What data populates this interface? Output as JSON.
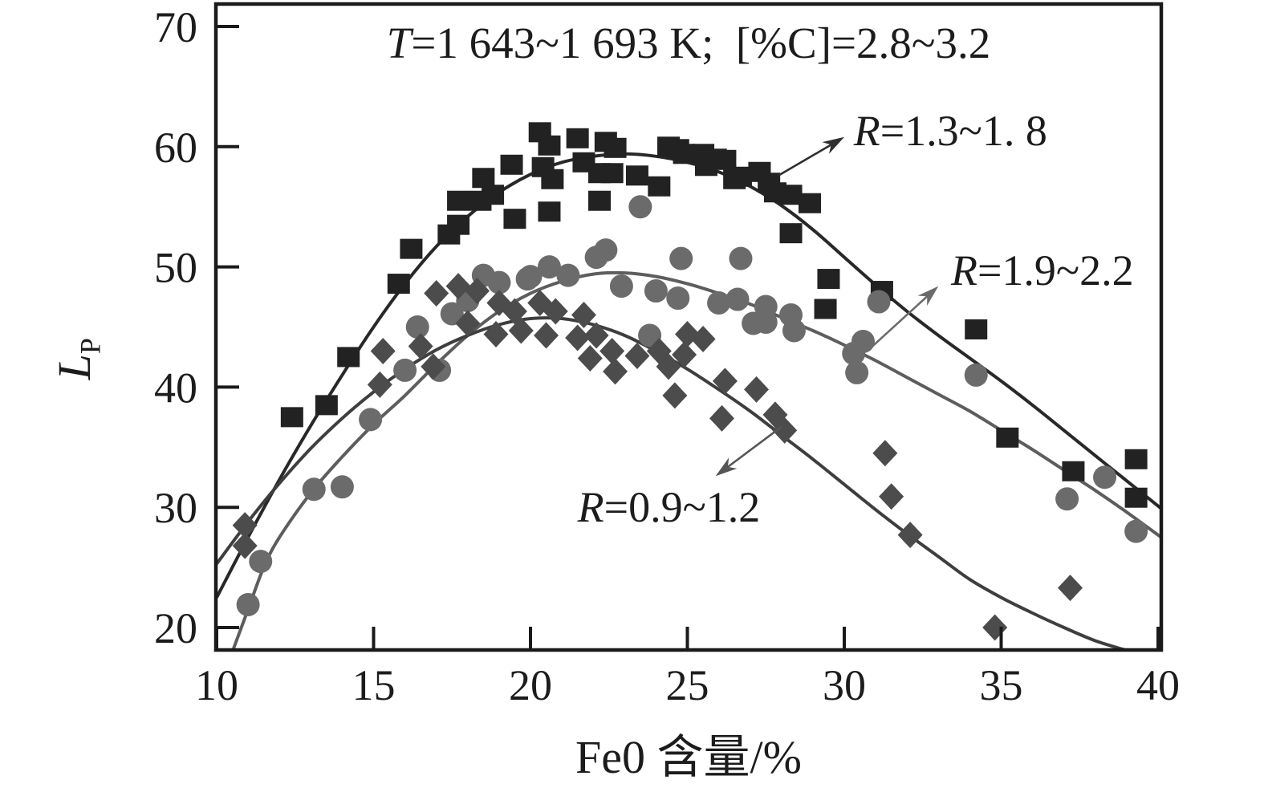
{
  "chart_data": {
    "type": "scatter",
    "title": {
      "italic": "T",
      "rest": "=1 643~1 693 K;  [%C]=2.8~3.2"
    },
    "xlabel": "Fe0 含量/%",
    "ylabel": {
      "main": "L",
      "sub": "P"
    },
    "xlim": [
      10,
      40
    ],
    "ylim": [
      18,
      72
    ],
    "x_ticks": [
      "10",
      "15",
      "20",
      "25",
      "30",
      "35",
      "40"
    ],
    "y_ticks": [
      "20",
      "30",
      "40",
      "50",
      "60",
      "70"
    ],
    "grid": false,
    "legend_position": "inline-annotations",
    "axis_color": "#1a1a1a",
    "series": [
      {
        "name": "R=1.3~1.8",
        "marker": "square",
        "color": "#222222",
        "curve_color": "#282828",
        "points": [
          [
            12.4,
            37.5
          ],
          [
            13.5,
            38.5
          ],
          [
            14.2,
            42.5
          ],
          [
            15.8,
            48.6
          ],
          [
            16.2,
            51.5
          ],
          [
            17.4,
            52.7
          ],
          [
            17.7,
            55.5
          ],
          [
            17.7,
            53.5
          ],
          [
            18.4,
            55.5
          ],
          [
            18.5,
            57.4
          ],
          [
            18.8,
            56.0
          ],
          [
            19.4,
            58.5
          ],
          [
            19.5,
            54.0
          ],
          [
            20.3,
            61.2
          ],
          [
            20.4,
            58.3
          ],
          [
            20.6,
            60.1
          ],
          [
            20.6,
            54.6
          ],
          [
            20.7,
            57.3
          ],
          [
            21.5,
            60.7
          ],
          [
            21.7,
            58.7
          ],
          [
            22.2,
            57.8
          ],
          [
            22.2,
            55.5
          ],
          [
            22.4,
            60.4
          ],
          [
            22.6,
            57.8
          ],
          [
            22.7,
            59.9
          ],
          [
            23.4,
            57.6
          ],
          [
            24.1,
            56.7
          ],
          [
            24.4,
            60.0
          ],
          [
            24.7,
            59.8
          ],
          [
            24.9,
            59.4
          ],
          [
            25.5,
            59.4
          ],
          [
            25.6,
            58.4
          ],
          [
            25.9,
            59.0
          ],
          [
            26.2,
            58.9
          ],
          [
            26.5,
            57.3
          ],
          [
            26.7,
            57.5
          ],
          [
            27.3,
            57.9
          ],
          [
            27.6,
            57.0
          ],
          [
            27.8,
            56.2
          ],
          [
            28.3,
            56.0
          ],
          [
            28.3,
            52.8
          ],
          [
            28.9,
            55.3
          ],
          [
            29.4,
            46.5
          ],
          [
            29.5,
            49.0
          ],
          [
            31.2,
            48.0
          ],
          [
            34.2,
            44.8
          ],
          [
            35.2,
            35.8
          ],
          [
            37.3,
            33.0
          ],
          [
            39.3,
            34.0
          ],
          [
            39.3,
            30.8
          ]
        ],
        "curve": [
          [
            10,
            22.5
          ],
          [
            11,
            27.5
          ],
          [
            12,
            32.3
          ],
          [
            13,
            36.8
          ],
          [
            14,
            41.0
          ],
          [
            15,
            45.0
          ],
          [
            16,
            48.6
          ],
          [
            17,
            51.7
          ],
          [
            18,
            54.2
          ],
          [
            19,
            56.2
          ],
          [
            20,
            57.7
          ],
          [
            21,
            58.7
          ],
          [
            22,
            59.2
          ],
          [
            23,
            59.4
          ],
          [
            24,
            59.2
          ],
          [
            25,
            58.7
          ],
          [
            26,
            57.9
          ],
          [
            27,
            56.7
          ],
          [
            28,
            55.1
          ],
          [
            29,
            53.1
          ],
          [
            30,
            50.8
          ],
          [
            31,
            48.5
          ],
          [
            32,
            46.3
          ],
          [
            33,
            44.3
          ],
          [
            34,
            42.4
          ],
          [
            35,
            40.5
          ],
          [
            36,
            38.5
          ],
          [
            37,
            36.4
          ],
          [
            38,
            34.3
          ],
          [
            39,
            32.2
          ],
          [
            40.1,
            29.9
          ]
        ]
      },
      {
        "name": "R=1.9~2.2",
        "marker": "circle",
        "color": "#6b6b6b",
        "curve_color": "#5d5d5d",
        "points": [
          [
            11.0,
            21.9
          ],
          [
            11.4,
            25.5
          ],
          [
            13.1,
            31.5
          ],
          [
            14.0,
            31.7
          ],
          [
            14.9,
            37.3
          ],
          [
            16.0,
            41.4
          ],
          [
            16.4,
            45.0
          ],
          [
            17.1,
            41.4
          ],
          [
            17.5,
            46.1
          ],
          [
            18.0,
            47.2
          ],
          [
            18.5,
            49.3
          ],
          [
            19.0,
            48.7
          ],
          [
            19.9,
            49.0
          ],
          [
            20.0,
            49.2
          ],
          [
            20.6,
            50.0
          ],
          [
            21.2,
            49.3
          ],
          [
            22.1,
            50.8
          ],
          [
            22.4,
            51.4
          ],
          [
            22.9,
            48.4
          ],
          [
            23.5,
            55.0
          ],
          [
            23.8,
            44.3
          ],
          [
            24.0,
            48.0
          ],
          [
            24.7,
            47.4
          ],
          [
            24.8,
            50.7
          ],
          [
            26.0,
            47.0
          ],
          [
            26.6,
            47.3
          ],
          [
            26.7,
            50.7
          ],
          [
            27.1,
            45.3
          ],
          [
            27.5,
            46.7
          ],
          [
            27.5,
            45.4
          ],
          [
            28.3,
            46.0
          ],
          [
            28.4,
            44.7
          ],
          [
            30.3,
            42.8
          ],
          [
            30.4,
            41.2
          ],
          [
            30.6,
            43.8
          ],
          [
            31.1,
            47.1
          ],
          [
            34.2,
            41.0
          ],
          [
            37.1,
            30.7
          ],
          [
            38.3,
            32.5
          ],
          [
            39.3,
            28.0
          ]
        ],
        "curve": [
          [
            10.5,
            18.0
          ],
          [
            11,
            21.5
          ],
          [
            11.5,
            25.0
          ],
          [
            12,
            27.5
          ],
          [
            13,
            31.2
          ],
          [
            14,
            34.2
          ],
          [
            15,
            36.9
          ],
          [
            16,
            39.3
          ],
          [
            17,
            41.9
          ],
          [
            18,
            44.3
          ],
          [
            19,
            46.3
          ],
          [
            20,
            47.8
          ],
          [
            21,
            48.8
          ],
          [
            22,
            49.4
          ],
          [
            23,
            49.5
          ],
          [
            24,
            49.2
          ],
          [
            25,
            48.6
          ],
          [
            26,
            47.8
          ],
          [
            27,
            46.9
          ],
          [
            28,
            45.8
          ],
          [
            29,
            44.7
          ],
          [
            30,
            43.5
          ],
          [
            31,
            42.2
          ],
          [
            32,
            40.8
          ],
          [
            33,
            39.4
          ],
          [
            34,
            38.0
          ],
          [
            35,
            36.4
          ],
          [
            36,
            34.8
          ],
          [
            37,
            33.1
          ],
          [
            38,
            31.4
          ],
          [
            39,
            29.6
          ],
          [
            40.1,
            27.5
          ]
        ]
      },
      {
        "name": "R=0.9~1.2",
        "marker": "diamond",
        "color": "#4c4c4c",
        "curve_color": "#3e3e3e",
        "points": [
          [
            10.9,
            28.5
          ],
          [
            10.9,
            26.8
          ],
          [
            15.2,
            40.2
          ],
          [
            15.3,
            43.0
          ],
          [
            16.5,
            43.4
          ],
          [
            16.9,
            41.7
          ],
          [
            17.0,
            47.8
          ],
          [
            17.7,
            48.4
          ],
          [
            18.0,
            45.3
          ],
          [
            18.3,
            48.0
          ],
          [
            18.9,
            44.4
          ],
          [
            19.0,
            47.0
          ],
          [
            19.5,
            46.3
          ],
          [
            19.7,
            44.7
          ],
          [
            20.3,
            47.0
          ],
          [
            20.5,
            44.3
          ],
          [
            20.8,
            46.3
          ],
          [
            21.5,
            44.1
          ],
          [
            21.7,
            46.0
          ],
          [
            21.9,
            42.4
          ],
          [
            22.1,
            44.3
          ],
          [
            22.6,
            43.0
          ],
          [
            22.7,
            41.3
          ],
          [
            23.4,
            42.6
          ],
          [
            24.1,
            43.0
          ],
          [
            24.4,
            41.7
          ],
          [
            24.6,
            39.3
          ],
          [
            24.9,
            42.7
          ],
          [
            25.0,
            44.4
          ],
          [
            25.5,
            44.0
          ],
          [
            26.1,
            37.4
          ],
          [
            26.2,
            40.5
          ],
          [
            27.2,
            39.8
          ],
          [
            27.8,
            37.7
          ],
          [
            28.1,
            36.4
          ],
          [
            31.3,
            34.5
          ],
          [
            31.5,
            30.9
          ],
          [
            32.1,
            27.7
          ],
          [
            34.8,
            20.0
          ],
          [
            37.2,
            23.3
          ]
        ],
        "curve": [
          [
            10,
            25.3
          ],
          [
            11,
            28.8
          ],
          [
            12,
            32.0
          ],
          [
            13,
            34.9
          ],
          [
            14,
            37.4
          ],
          [
            15,
            39.6
          ],
          [
            16,
            41.5
          ],
          [
            17,
            43.1
          ],
          [
            18,
            44.3
          ],
          [
            19,
            45.2
          ],
          [
            20,
            45.7
          ],
          [
            21,
            45.7
          ],
          [
            22,
            45.2
          ],
          [
            23,
            44.3
          ],
          [
            24,
            43.0
          ],
          [
            25,
            41.5
          ],
          [
            26,
            39.8
          ],
          [
            27,
            38.0
          ],
          [
            28,
            36.0
          ],
          [
            29,
            34.0
          ],
          [
            30,
            31.9
          ],
          [
            31,
            29.8
          ],
          [
            32,
            27.8
          ],
          [
            33,
            25.9
          ],
          [
            34,
            24.0
          ],
          [
            35,
            22.5
          ],
          [
            36,
            21.2
          ],
          [
            37,
            20.0
          ],
          [
            38,
            18.9
          ],
          [
            39,
            18.1
          ],
          [
            39.5,
            17.8
          ]
        ]
      }
    ],
    "annotations": [
      {
        "italic": "R",
        "rest": "=1.3~1. 8",
        "label_pos": [
          30.3,
          61.3
        ],
        "arrow_from": [
          27.9,
          57.6
        ],
        "arrow_to": [
          30.0,
          60.8
        ],
        "color": "#2f2f2f"
      },
      {
        "italic": "R",
        "rest": "=1.9~2.2",
        "label_pos": [
          33.4,
          49.7
        ],
        "arrow_from": [
          30.9,
          43.4
        ],
        "arrow_to": [
          33.0,
          48.4
        ],
        "color": "#6b6b6b"
      },
      {
        "italic": "R",
        "rest": "=0.9~1.2",
        "label_pos": [
          21.5,
          30.0
        ],
        "arrow_from": [
          28.0,
          36.7
        ],
        "arrow_to": [
          25.9,
          32.6
        ],
        "color": "#565656"
      }
    ]
  }
}
